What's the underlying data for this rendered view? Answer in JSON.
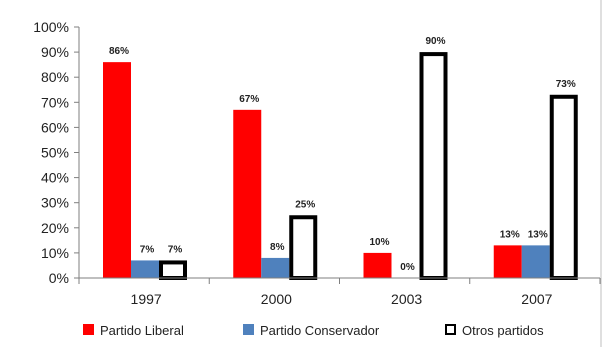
{
  "chart_data": {
    "type": "bar",
    "title": "",
    "xlabel": "",
    "ylabel": "",
    "categories": [
      "1997",
      "2000",
      "2003",
      "2007"
    ],
    "ylim": [
      0,
      100
    ],
    "y_ticks": [
      "0%",
      "10%",
      "20%",
      "30%",
      "40%",
      "50%",
      "60%",
      "70%",
      "80%",
      "90%",
      "100%"
    ],
    "grid": false,
    "legend_position": "bottom",
    "series": [
      {
        "name": "Partido Liberal",
        "values": [
          86,
          67,
          10,
          13
        ],
        "labels": [
          "86%",
          "67%",
          "10%",
          "13%"
        ],
        "color": "#ff0000"
      },
      {
        "name": "Partido Conservador",
        "values": [
          7,
          8,
          0,
          13
        ],
        "labels": [
          "7%",
          "8%",
          "0%",
          "13%"
        ],
        "color": "#4f81bd"
      },
      {
        "name": "Otros partidos",
        "values": [
          7,
          25,
          90,
          73
        ],
        "labels": [
          "7%",
          "25%",
          "90%",
          "73%"
        ],
        "color": "#ffffff",
        "stroke_color": "#000000"
      }
    ]
  }
}
